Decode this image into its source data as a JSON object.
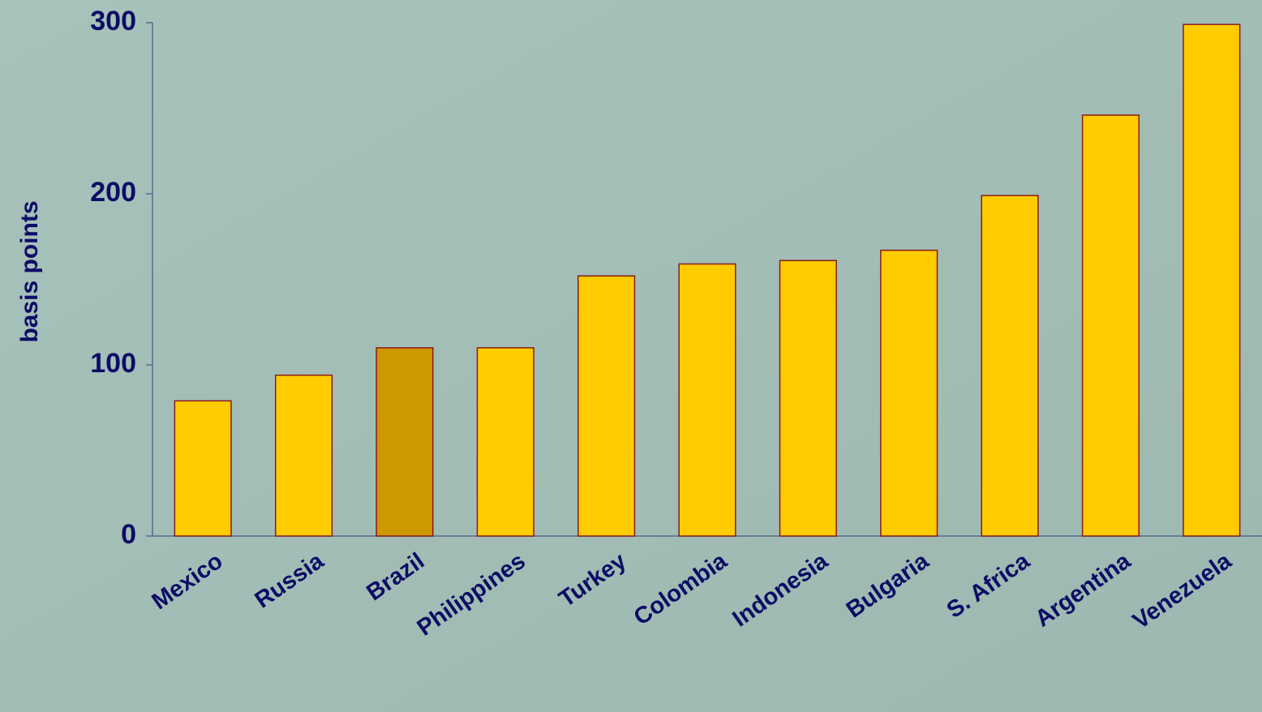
{
  "chart_data": {
    "type": "bar",
    "y_label": "basis points",
    "categories": [
      "Mexico",
      "Russia",
      "Brazil",
      "Philippines",
      "Turkey",
      "Colombia",
      "Indonesia",
      "Bulgaria",
      "S. Africa",
      "Argentina",
      "Venezuela"
    ],
    "values": [
      79,
      94,
      110,
      110,
      152,
      159,
      161,
      167,
      199,
      246,
      299
    ],
    "colors": [
      "#ffcc00",
      "#ffcc00",
      "#cc9900",
      "#ffcc00",
      "#ffcc00",
      "#ffcc00",
      "#ffcc00",
      "#ffcc00",
      "#ffcc00",
      "#ffcc00",
      "#ffcc00"
    ],
    "ylim": [
      0,
      300
    ],
    "yticks": [
      0,
      100,
      200,
      300
    ],
    "grid": false
  }
}
